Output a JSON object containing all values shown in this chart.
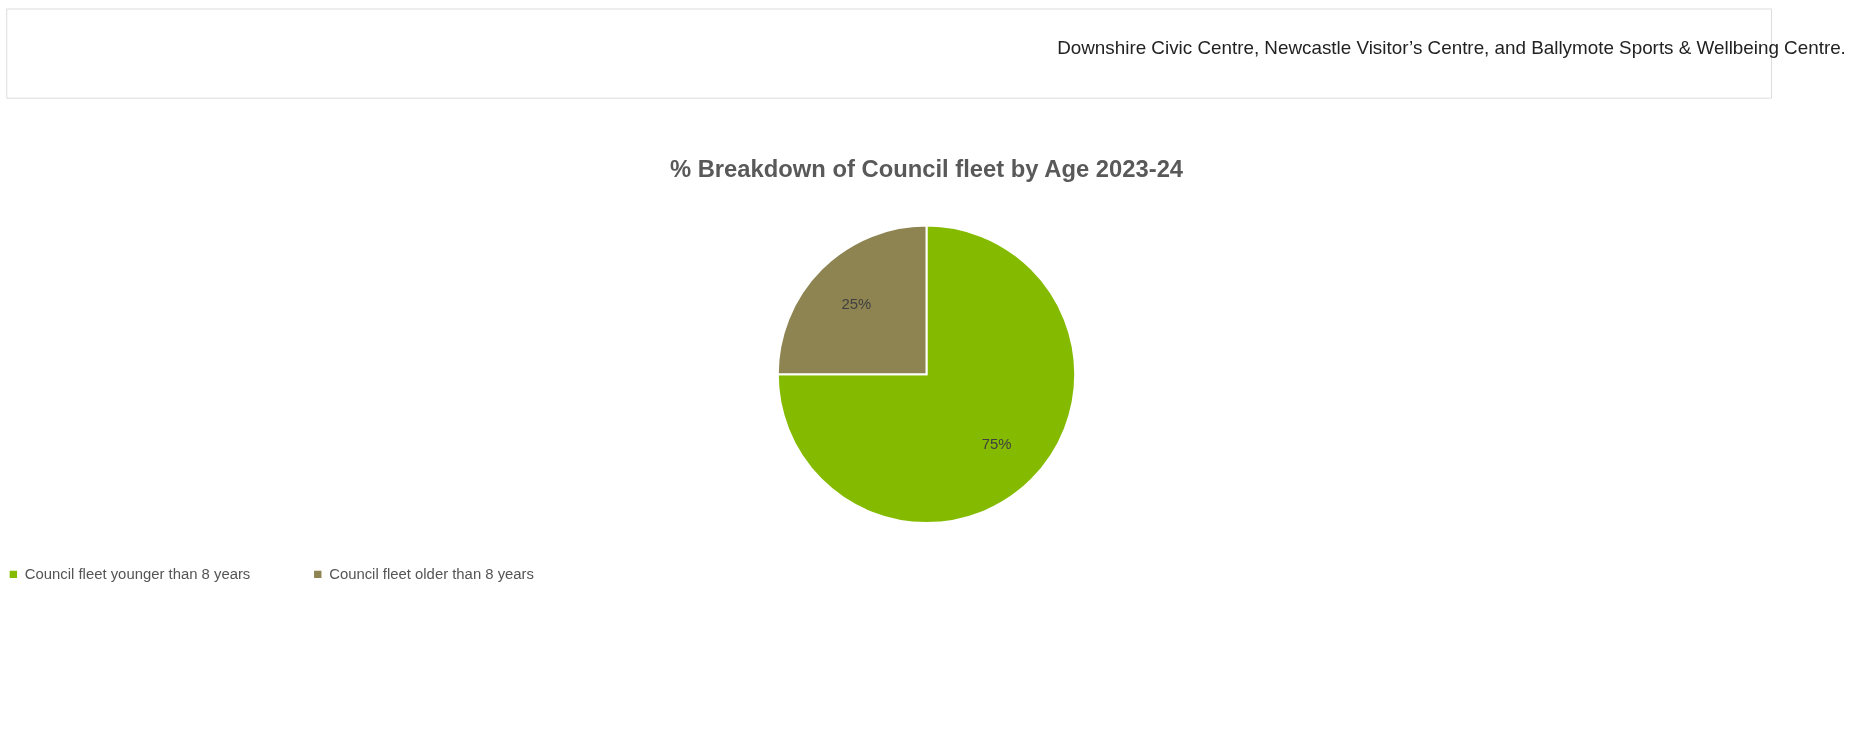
{
  "chart_data": {
    "type": "pie",
    "title": "% Breakdown of Council fleet by Age 2023-24",
    "categories": [
      "Council fleet younger than 8 years",
      "Council fleet older than 8 years"
    ],
    "values": [
      75,
      25
    ],
    "colors": [
      "#84bb00",
      "#8e8451"
    ],
    "value_labels": [
      "75%",
      "25%"
    ],
    "legend": "bottom",
    "annotations": [
      "Downshire Civic Centre, Newcastle Visitor’s Centre, and Ballymote Sports & Wellbeing Centre."
    ]
  }
}
